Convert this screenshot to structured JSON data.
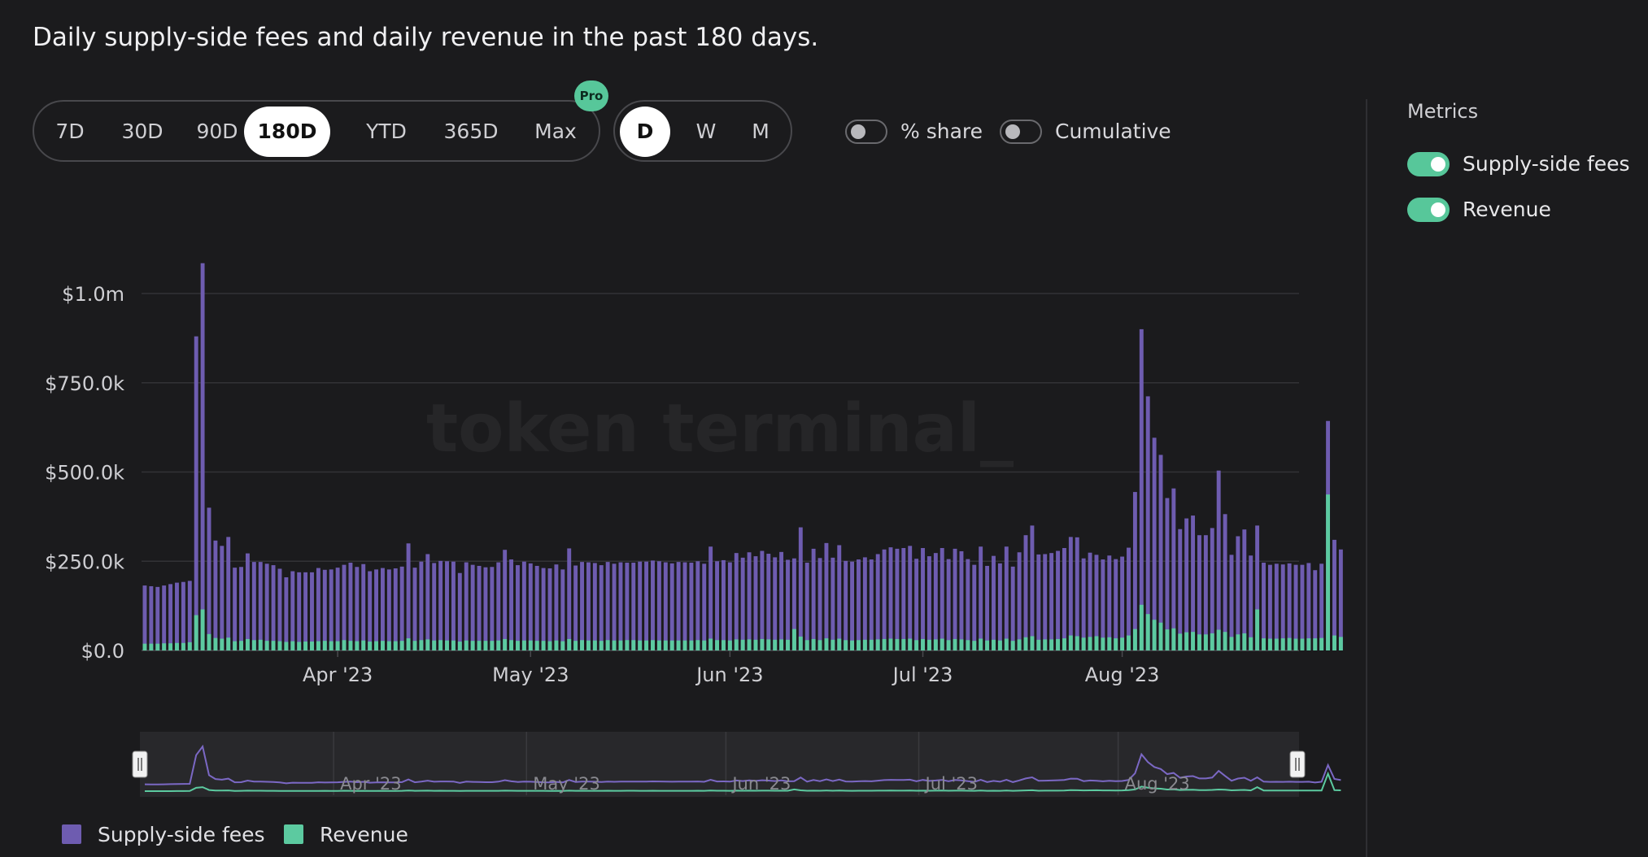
{
  "title": "Daily supply-side fees and daily revenue in the past 180 days.",
  "range_buttons": [
    "7D",
    "30D",
    "90D",
    "180D",
    "YTD",
    "365D",
    "Max"
  ],
  "range_selected": "180D",
  "pro_badge": "Pro",
  "granularity_buttons": [
    "D",
    "W",
    "M"
  ],
  "granularity_selected": "D",
  "toggles": {
    "share_label": "% share",
    "cumulative_label": "Cumulative"
  },
  "metrics": {
    "title": "Metrics",
    "items": [
      {
        "label": "Supply-side fees",
        "enabled": true
      },
      {
        "label": "Revenue",
        "enabled": true
      }
    ]
  },
  "watermark": "token terminal_",
  "colors": {
    "supply": "#6e5cb0",
    "revenue": "#5ccaa0",
    "accent": "#57c79a"
  },
  "chart_data": {
    "type": "bar",
    "stacked": false,
    "x_start": "2023-03-02",
    "x_end": "2023-08-28",
    "ylim": [
      0,
      1000000
    ],
    "yticks": [
      0,
      250000,
      500000,
      750000,
      1000000
    ],
    "ytick_labels": [
      "$0.0",
      "$250.0k",
      "$500.0k",
      "$750.0k",
      "$1.0m"
    ],
    "xticks": [
      "2023-04-01",
      "2023-05-01",
      "2023-06-01",
      "2023-07-01",
      "2023-08-01"
    ],
    "xtick_labels": [
      "Apr '23",
      "May '23",
      "Jun '23",
      "Jul '23",
      "Aug '23"
    ],
    "grid": true,
    "legend_position": "bottom-left",
    "series": [
      {
        "name": "Supply-side fees",
        "color": "#6e5cb0",
        "values": [
          182000,
          180000,
          178000,
          182000,
          186000,
          190000,
          192000,
          195000,
          880000,
          1085000,
          400000,
          308000,
          293000,
          318000,
          232000,
          234000,
          272000,
          248000,
          248000,
          243000,
          239000,
          229000,
          205000,
          222000,
          219000,
          219000,
          219000,
          231000,
          226000,
          227000,
          232000,
          240000,
          246000,
          234000,
          242000,
          222000,
          227000,
          231000,
          227000,
          230000,
          235000,
          300000,
          232000,
          249000,
          270000,
          245000,
          251000,
          250000,
          249000,
          217000,
          247000,
          240000,
          237000,
          233000,
          234000,
          247000,
          282000,
          255000,
          239000,
          249000,
          244000,
          237000,
          231000,
          230000,
          241000,
          227000,
          286000,
          238000,
          248000,
          247000,
          245000,
          239000,
          248000,
          243000,
          247000,
          246000,
          246000,
          249000,
          249000,
          252000,
          250000,
          247000,
          244000,
          248000,
          247000,
          246000,
          250000,
          243000,
          291000,
          250000,
          253000,
          247000,
          273000,
          260000,
          275000,
          264000,
          279000,
          271000,
          261000,
          276000,
          254000,
          258000,
          345000,
          246000,
          285000,
          259000,
          301000,
          260000,
          295000,
          251000,
          249000,
          255000,
          261000,
          255000,
          270000,
          283000,
          289000,
          285000,
          287000,
          293000,
          257000,
          287000,
          264000,
          273000,
          287000,
          256000,
          285000,
          278000,
          256000,
          240000,
          291000,
          237000,
          265000,
          244000,
          291000,
          235000,
          275000,
          323000,
          350000,
          269000,
          270000,
          273000,
          279000,
          287000,
          318000,
          317000,
          258000,
          274000,
          268000,
          255000,
          266000,
          256000,
          263000,
          288000,
          444000,
          900000,
          712000,
          596000,
          548000,
          427000,
          454000,
          340000,
          370000,
          378000,
          323000,
          323000,
          343000,
          504000,
          382000,
          268000,
          320000,
          339000,
          266000,
          350000,
          246000,
          240000,
          243000,
          241000,
          244000,
          240000,
          240000,
          245000,
          225000,
          243000,
          643000,
          310000,
          283000
        ]
      },
      {
        "name": "Revenue",
        "color": "#5ccaa0",
        "values": [
          19000,
          19000,
          19000,
          20000,
          20000,
          21000,
          21000,
          23000,
          99000,
          115000,
          46000,
          35000,
          33000,
          36000,
          26000,
          27000,
          32000,
          29000,
          30000,
          27000,
          27000,
          26000,
          24000,
          26000,
          24000,
          25000,
          25000,
          26000,
          27000,
          26000,
          26000,
          29000,
          27000,
          26000,
          28000,
          25000,
          26000,
          27000,
          26000,
          26000,
          27000,
          34000,
          27000,
          29000,
          31000,
          28000,
          29000,
          28000,
          28000,
          25000,
          28000,
          27000,
          27000,
          27000,
          27000,
          28000,
          32000,
          29000,
          27000,
          28000,
          28000,
          27000,
          27000,
          26000,
          28000,
          26000,
          32000,
          27000,
          29000,
          28000,
          28000,
          27000,
          29000,
          28000,
          28000,
          29000,
          29000,
          28000,
          28000,
          29000,
          28000,
          28000,
          28000,
          28000,
          28000,
          28000,
          29000,
          28000,
          33000,
          29000,
          29000,
          28000,
          31000,
          30000,
          31000,
          30000,
          32000,
          31000,
          30000,
          31000,
          30000,
          60000,
          39000,
          29000,
          32000,
          29000,
          34000,
          30000,
          33000,
          29000,
          28000,
          29000,
          30000,
          30000,
          31000,
          32000,
          33000,
          32000,
          32000,
          33000,
          29000,
          32000,
          30000,
          31000,
          33000,
          29000,
          32000,
          31000,
          29000,
          27000,
          33000,
          28000,
          30000,
          28000,
          33000,
          27000,
          31000,
          37000,
          40000,
          30000,
          31000,
          31000,
          32000,
          34000,
          42000,
          40000,
          36000,
          38000,
          40000,
          36000,
          37000,
          34000,
          36000,
          42000,
          60000,
          128000,
          102000,
          86000,
          78000,
          59000,
          62000,
          47000,
          51000,
          52000,
          45000,
          45000,
          48000,
          58000,
          52000,
          38000,
          45000,
          48000,
          37000,
          115000,
          34000,
          33000,
          33000,
          34000,
          35000,
          33000,
          33000,
          34000,
          34000,
          35000,
          437000,
          42000,
          38000
        ]
      }
    ]
  },
  "navigator": {
    "labels": [
      "Apr '23",
      "May '23",
      "Jun '23",
      "Jul '23",
      "Aug '23"
    ]
  },
  "legend": [
    {
      "label": "Supply-side fees",
      "color": "#6e5cb0"
    },
    {
      "label": "Revenue",
      "color": "#5ccaa0"
    }
  ]
}
